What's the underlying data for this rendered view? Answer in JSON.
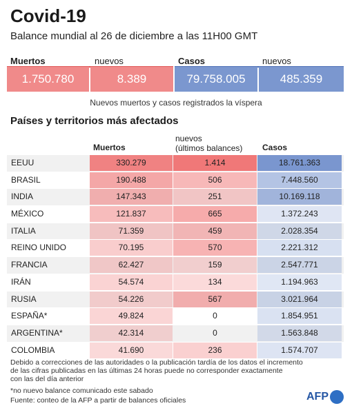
{
  "header": {
    "title": "Covid-19",
    "subtitle": "Balance mundial al 26 de diciembre a las 11H00 GMT"
  },
  "summary": {
    "deaths_label": "Muertos",
    "deaths_value": "1.750.780",
    "deaths_new_label": "nuevos",
    "deaths_new_value": "8.389",
    "cases_label": "Casos",
    "cases_value": "79.758.005",
    "cases_new_label": "nuevos",
    "cases_new_value": "485.359",
    "note": "Nuevos muertos y casos registrados la víspera"
  },
  "table": {
    "section_title": "Países y territorios más afectados",
    "col_deaths": "Muertos",
    "col_new_line1": "nuevos",
    "col_new_line2": "(últimos balances)",
    "col_cases": "Casos",
    "rows": [
      {
        "country": "EEUU",
        "deaths": "330.279",
        "new": "1.414",
        "cases": "18.761.363"
      },
      {
        "country": "BRASIL",
        "deaths": "190.488",
        "new": "506",
        "cases": "7.448.560"
      },
      {
        "country": "INDIA",
        "deaths": "147.343",
        "new": "251",
        "cases": "10.169.118"
      },
      {
        "country": "MÉXICO",
        "deaths": "121.837",
        "new": "665",
        "cases": "1.372.243"
      },
      {
        "country": "ITALIA",
        "deaths": "71.359",
        "new": "459",
        "cases": "2.028.354"
      },
      {
        "country": "REINO UNIDO",
        "deaths": "70.195",
        "new": "570",
        "cases": "2.221.312"
      },
      {
        "country": "FRANCIA",
        "deaths": "62.427",
        "new": "159",
        "cases": "2.547.771"
      },
      {
        "country": "IRÁN",
        "deaths": "54.574",
        "new": "134",
        "cases": "1.194.963"
      },
      {
        "country": "RUSIA",
        "deaths": "54.226",
        "new": "567",
        "cases": "3.021.964"
      },
      {
        "country": "ESPAÑA*",
        "deaths": "49.824",
        "new": "0",
        "cases": "1.854.951"
      },
      {
        "country": "ARGENTINA*",
        "deaths": "42.314",
        "new": "0",
        "cases": "1.563.848"
      },
      {
        "country": "COLOMBIA",
        "deaths": "41.690",
        "new": "236",
        "cases": "1.574.707"
      }
    ]
  },
  "footer": {
    "line1": "Debido a correcciones de las autoridades o la publicación tardía de los datos  el incremento",
    "line2": "de las cifras publicadas en las últimas 24 horas puede no corresponder exactamente",
    "line3": "con las del día anterior",
    "footnote": "*no nuevo balance comunicado este sabado",
    "source": "Fuente: conteo de la AFP a partir de balances oficiales",
    "logo": "AFP"
  },
  "colors": {
    "deaths_accent": "#f08a8a",
    "cases_accent": "#7b97cf",
    "deaths_rule": "#e05555",
    "cases_rule": "#4a6db5"
  }
}
